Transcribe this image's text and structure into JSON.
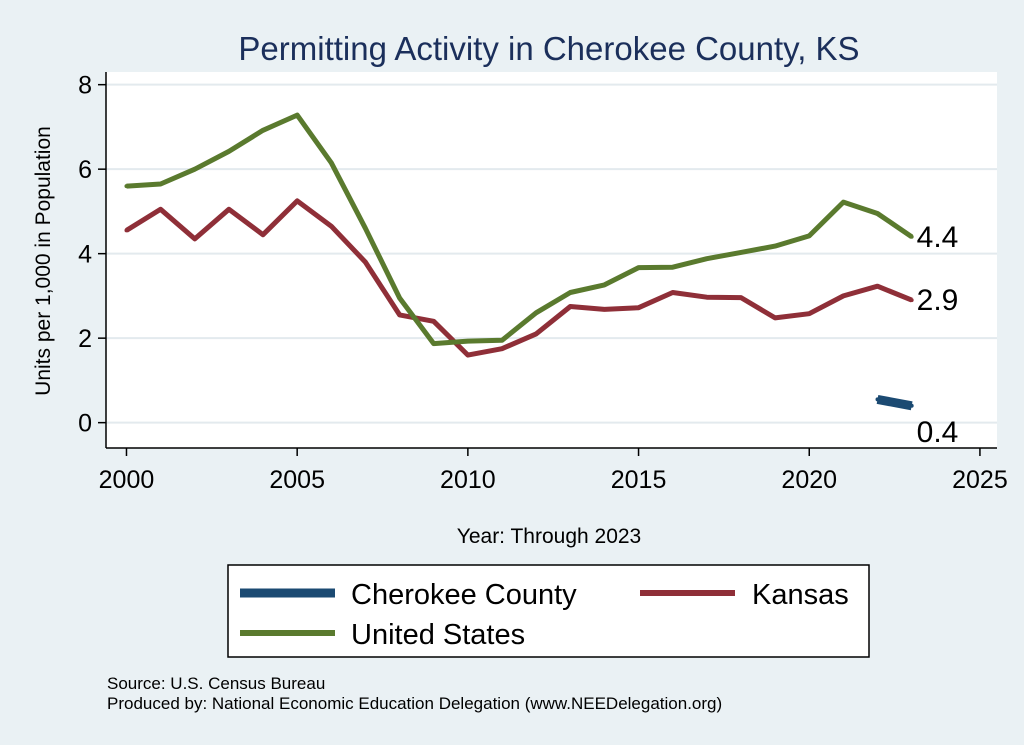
{
  "colors": {
    "background": "#eaf1f4",
    "plot_background": "#ffffff",
    "gridline": "#e3eaee",
    "axis": "#000000",
    "title": "#1b2f5b",
    "cherokee": "#1b4a72",
    "kansas": "#8f2f38",
    "united_states": "#5a7a2e"
  },
  "chart_data": {
    "type": "line",
    "title": "Permitting Activity in Cherokee County, KS",
    "xlabel": "Year: Through 2023",
    "ylabel": "Units per 1,000 in Population",
    "xlim": [
      1999.4,
      2025.5
    ],
    "ylim": [
      -0.6,
      8.3
    ],
    "x_ticks": [
      2000,
      2005,
      2010,
      2015,
      2020,
      2025
    ],
    "y_ticks": [
      0,
      2,
      4,
      6,
      8
    ],
    "grid": true,
    "legend_position": "bottom",
    "series": [
      {
        "name": "Cherokee County",
        "key": "cherokee",
        "x": [
          2022,
          2023
        ],
        "values": [
          0.55,
          0.4
        ],
        "end_label": "0.4",
        "stroke_width": 9
      },
      {
        "name": "Kansas",
        "key": "kansas",
        "x": [
          2000,
          2001,
          2002,
          2003,
          2004,
          2005,
          2006,
          2007,
          2008,
          2009,
          2010,
          2011,
          2012,
          2013,
          2014,
          2015,
          2016,
          2017,
          2018,
          2019,
          2020,
          2021,
          2022,
          2023
        ],
        "values": [
          4.55,
          5.05,
          4.35,
          5.05,
          4.45,
          5.25,
          4.65,
          3.8,
          2.55,
          2.4,
          1.6,
          1.75,
          2.1,
          2.75,
          2.68,
          2.72,
          3.08,
          2.97,
          2.96,
          2.48,
          2.58,
          3.0,
          3.23,
          2.9
        ],
        "end_label": "2.9",
        "stroke_width": 5
      },
      {
        "name": "United States",
        "key": "united_states",
        "x": [
          2000,
          2001,
          2002,
          2003,
          2004,
          2005,
          2006,
          2007,
          2008,
          2009,
          2010,
          2011,
          2012,
          2013,
          2014,
          2015,
          2016,
          2017,
          2018,
          2019,
          2020,
          2021,
          2022,
          2023
        ],
        "values": [
          5.6,
          5.65,
          6.0,
          6.42,
          6.92,
          7.28,
          6.15,
          4.6,
          2.95,
          1.87,
          1.93,
          1.95,
          2.6,
          3.08,
          3.26,
          3.67,
          3.68,
          3.88,
          4.03,
          4.18,
          4.42,
          5.22,
          4.95,
          4.4
        ],
        "end_label": "4.4",
        "stroke_width": 5
      }
    ],
    "legend": [
      {
        "label": "Cherokee County",
        "key": "cherokee"
      },
      {
        "label": "Kansas",
        "key": "kansas"
      },
      {
        "label": "United States",
        "key": "united_states"
      }
    ],
    "notes": {
      "source": "Source: U.S. Census Bureau",
      "produced_by": "Produced by: National Economic Education Delegation (www.NEEDelegation.org)"
    }
  }
}
